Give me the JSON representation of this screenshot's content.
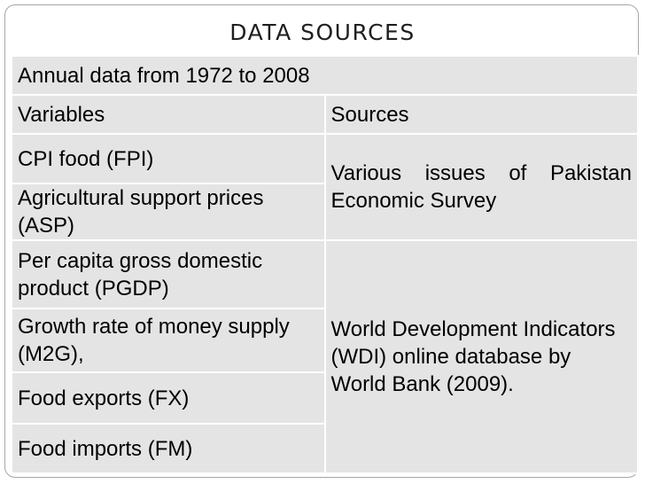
{
  "slide": {
    "title": "DATA SOURCES"
  },
  "table": {
    "caption_row": "Annual data from 1972 to 2008",
    "header": {
      "variables": "Variables",
      "sources": "Sources"
    },
    "rows": [
      {
        "variable": "CPI food (FPI)"
      },
      {
        "variable": "Agricultural support prices (ASP)"
      },
      {
        "variable": "Per capita gross domestic product (PGDP)"
      },
      {
        "variable": "Growth rate of money supply (M2G),"
      },
      {
        "variable": "Food exports (FX)"
      },
      {
        "variable": "Food imports (FM)"
      }
    ],
    "source_groups": [
      {
        "text": "Various issues of Pakistan Economic Survey"
      },
      {
        "text": "World Development Indicators (WDI) online database by World Bank (2009)."
      }
    ]
  }
}
